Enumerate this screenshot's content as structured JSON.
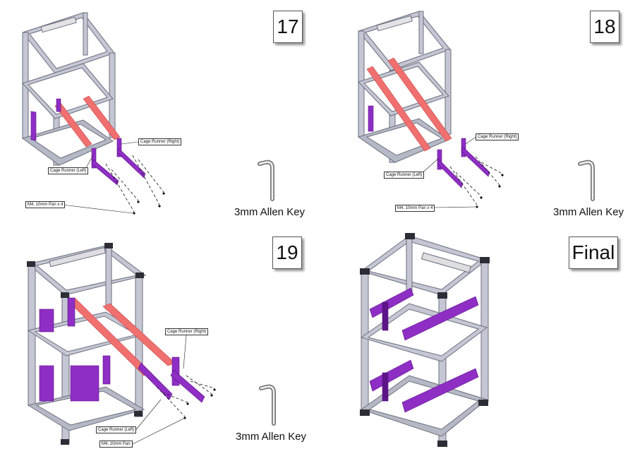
{
  "colors": {
    "frame": "#b9bcc9",
    "frame_edge": "#6b6e7c",
    "runner": "#8e2ec4",
    "runner_dark": "#5c1487",
    "rail_highlight": "#f07070",
    "corner": "#2d2d35"
  },
  "panels": [
    {
      "step": "17",
      "labels": {
        "right": "Cage Runner (Right)",
        "left": "Cage Runner (Left)",
        "screws": "M4, 10mm Pan x 4"
      },
      "tool": {
        "icon": "allen-key-icon",
        "caption": "3mm Allen Key"
      }
    },
    {
      "step": "18",
      "labels": {
        "right": "Cage Runner (Right)",
        "left": "Cage Runner (Left)",
        "screws": "M4, 10mm Pan x 4"
      },
      "tool": {
        "icon": "allen-key-icon",
        "caption": "3mm Allen Key"
      }
    },
    {
      "step": "19",
      "labels": {
        "right": "Cage Runner (Right)",
        "left": "Cage Runner (Left)",
        "screws": "M4, 10mm Pan"
      },
      "tool": {
        "icon": "allen-key-icon",
        "caption": "3mm Allen Key"
      }
    },
    {
      "step": "Final"
    }
  ]
}
